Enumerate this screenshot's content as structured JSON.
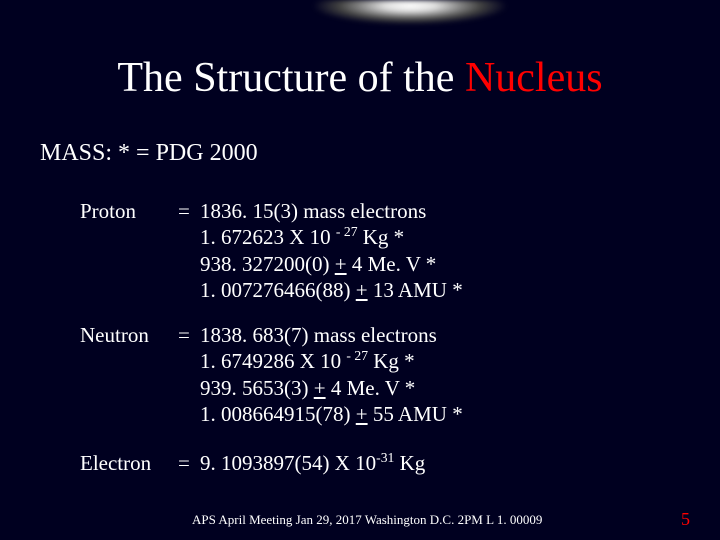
{
  "title_part1": "The Structure of the ",
  "title_part2": "Nucleus",
  "subhead": "MASS:   * = PDG 2000",
  "proton": {
    "label": "Proton",
    "eq": "=",
    "l1_a": "1836. 15(3)  mass electrons",
    "l2_a": "1. 672623 X 10 ",
    "l2_exp": "- 27",
    "l2_b": "  Kg  *",
    "l3_a": "938. 327200(0) ",
    "l3_u": "+",
    "l3_b": " 4  Me. V  *",
    "l4_a": "1. 007276466(88) ",
    "l4_u": "+",
    "l4_b": " 13 AMU  *"
  },
  "neutron": {
    "label": "Neutron",
    "eq": "=",
    "l1_a": "1838. 683(7) mass electrons",
    "l2_a": "1. 6749286 X 10 ",
    "l2_exp": "- 27",
    "l2_b": "  Kg  *",
    "l3_a": "939. 5653(3) ",
    "l3_u": "+",
    "l3_b": " 4 Me. V  *",
    "l4_a": "1. 008664915(78) ",
    "l4_u": "+",
    "l4_b": " 55 AMU  *"
  },
  "electron": {
    "label": "Electron",
    "eq": "=",
    "l1_a": " 9. 1093897(54) X 10",
    "l1_exp": "-31",
    "l1_b": "   Kg"
  },
  "footer": "APS April Meeting Jan 29, 2017 Washington D.C.   2PM  L 1. 00009",
  "pagenum": "5",
  "colors": {
    "bg": "#000020",
    "text": "#ffffff",
    "accent": "#ff0000"
  }
}
